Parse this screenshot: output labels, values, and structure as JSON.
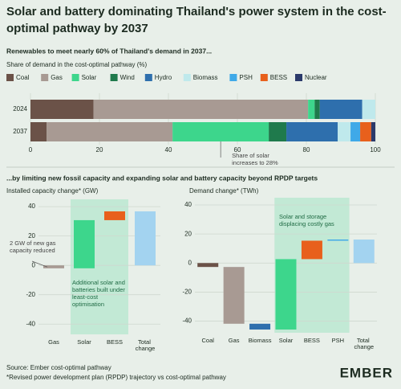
{
  "title": "Solar and battery dominating Thailand's power system in the cost-optimal pathway by 2037",
  "section_heading": "...by limiting new fossil capacity and expanding solar and battery capacity beyond RPDP targets",
  "chart_data": [
    {
      "type": "stacked_barh",
      "title": "Renewables to meet nearly 60% of Thailand's demand in 2037...",
      "axis_label": "Share of demand in the cost-optimal pathway (%)",
      "categories": [
        "2024",
        "2037"
      ],
      "series": [
        {
          "name": "Coal",
          "color": "#6b5248",
          "values": [
            18.3,
            4.7
          ]
        },
        {
          "name": "Gas",
          "color": "#a89a93",
          "values": [
            62.2,
            36.5
          ]
        },
        {
          "name": "Solar",
          "color": "#3dd68c",
          "values": [
            1.9,
            27.9
          ]
        },
        {
          "name": "Wind",
          "color": "#1f7a4c",
          "values": [
            1.5,
            5.1
          ]
        },
        {
          "name": "Hydro",
          "color": "#2e6fad",
          "values": [
            12.3,
            14.9
          ]
        },
        {
          "name": "Biomass",
          "color": "#bfe9ec",
          "values": [
            3.8,
            3.7
          ]
        },
        {
          "name": "PSH",
          "color": "#3fa9e8",
          "values": [
            0,
            2.8
          ]
        },
        {
          "name": "BESS",
          "color": "#e8601c",
          "values": [
            0,
            3.2
          ]
        },
        {
          "name": "Nuclear",
          "color": "#2b3a6b",
          "values": [
            0,
            1.2
          ]
        }
      ],
      "xlim": [
        0,
        100
      ],
      "xticks": [
        0,
        20,
        40,
        60,
        80,
        100
      ],
      "grid": true,
      "annotation": "Share of solar increases to 28%"
    },
    {
      "type": "waterfall",
      "title": "Installed capacity change* (GW)",
      "categories": [
        "Gas",
        "Solar",
        "BESS",
        "Total change"
      ],
      "values": [
        -2,
        32.8,
        6,
        36.8
      ],
      "is_total": [
        false,
        false,
        false,
        true
      ],
      "colors": [
        "#a89a93",
        "#3dd68c",
        "#e8601c",
        "#a3d3f0"
      ],
      "ylim": [
        -47,
        45
      ],
      "yticks": [
        -40,
        -20,
        0,
        20,
        40
      ],
      "grid": true,
      "annotations": [
        "2 GW of new gas capacity reduced",
        "Additional solar and batteries built under least-cost optimisation"
      ]
    },
    {
      "type": "waterfall",
      "title": "Demand change* (TWh)",
      "categories": [
        "Coal",
        "Gas",
        "Biomass",
        "Solar",
        "BESS",
        "PSH",
        "Total change"
      ],
      "values": [
        -2.7,
        -39.1,
        -4,
        48.5,
        12.7,
        0.8,
        16.2
      ],
      "is_total": [
        false,
        false,
        false,
        false,
        false,
        false,
        true
      ],
      "colors": [
        "#6b5248",
        "#a89a93",
        "#2e6fad",
        "#3dd68c",
        "#e8601c",
        "#3fa9e8",
        "#a3d3f0"
      ],
      "ylim": [
        -48,
        45
      ],
      "yticks": [
        -40,
        -20,
        0,
        20,
        40
      ],
      "grid": true,
      "annotations": [
        "Solar and storage displacing costly gas"
      ]
    }
  ],
  "footer": {
    "source": "Source: Ember cost-optimal pathway",
    "note": "*Revised power development plan (RPDP) trajectory vs cost-optimal pathway",
    "logo": "EMBER"
  }
}
